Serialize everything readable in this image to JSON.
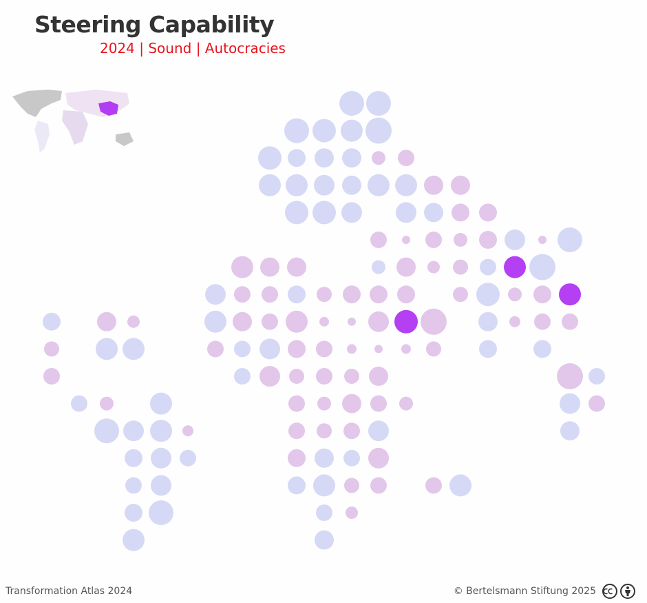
{
  "header": {
    "title": "Steering Capability",
    "subtitle": "2024 | Sound | Autocracies"
  },
  "footer": {
    "source": "Transformation Atlas 2024",
    "copyright": "© Bertelsmann Stiftung 2025"
  }
}
